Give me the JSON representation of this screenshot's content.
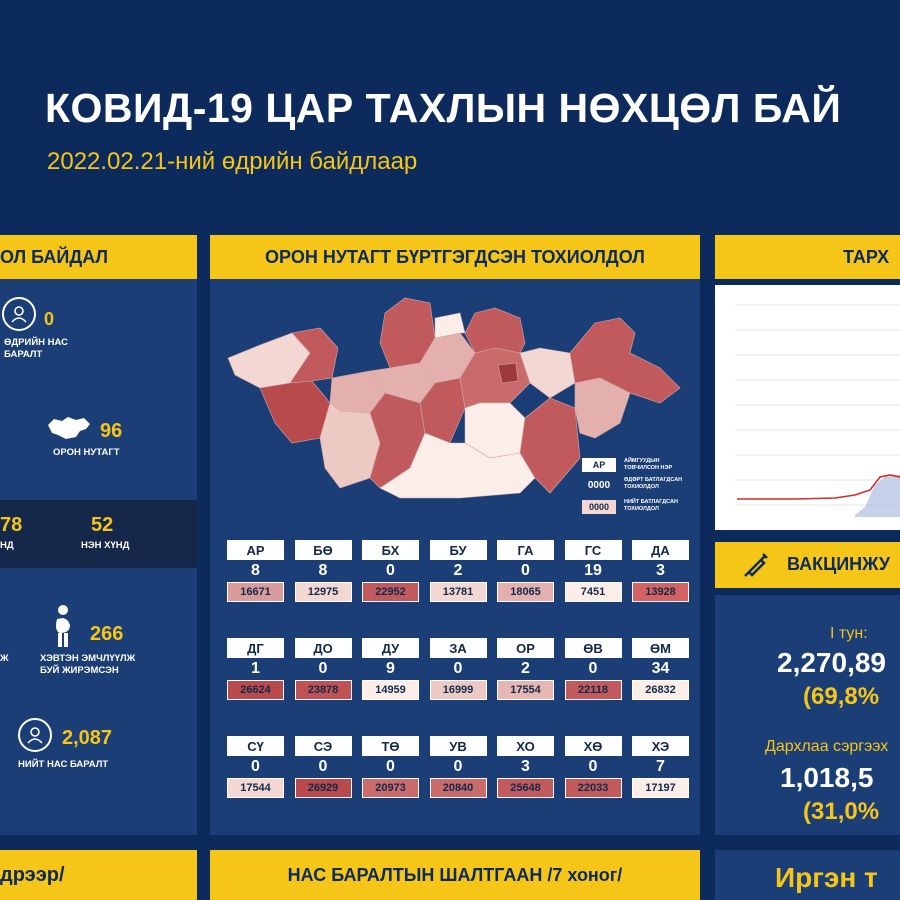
{
  "header": {
    "title": "КОВИД-19 ЦАР ТАХЛЫН НӨХЦӨЛ БАЙ",
    "date_line": "2022.02.21-ний өдрийн байдлаар"
  },
  "left_panel": {
    "title": "ОЛ БАЙДАЛ",
    "daily_deaths": {
      "value": "0",
      "label_line1": "ӨДРИЙН НАС",
      "label_line2": "БАРАЛТ"
    },
    "local": {
      "value": "96",
      "label": "ОРОН НУТАГТ"
    },
    "hosp": {
      "value_a": "78",
      "label_a": "НД",
      "value_b": "52",
      "label_b": "НЭН ХҮНД"
    },
    "pregnant": {
      "value": "266",
      "label_a": "Ж",
      "label_line1": "ХЭВТЭН ЭМЧЛҮҮЛЖ",
      "label_line2": "БУЙ ЖИРЭМСЭН"
    },
    "total_deaths": {
      "value": "2,087",
      "label": "НИЙТ НАС БАРАЛТ"
    },
    "bottom_title": "дрээр/"
  },
  "map_panel": {
    "title": "ОРОН НУТАГТ БҮРТГЭГДСЭН ТОХИОЛДОЛ",
    "legend": {
      "code_sample": "АР",
      "code_desc_1": "АЙМГУУДЫН",
      "code_desc_2": "ТОВЧИЛСОН НЭР",
      "daily_sample": "0000",
      "daily_desc_1": "ӨДӨРТ БАТЛАГДСАН",
      "daily_desc_2": "ТОХИОЛДОЛ",
      "total_sample": "0000",
      "total_desc_1": "НИЙТ БАТЛАГДСАН",
      "total_desc_2": "ТОХИОЛДОЛ"
    },
    "provinces": [
      {
        "code": "АР",
        "daily": "8",
        "total": "16671",
        "color": "#d99b9b"
      },
      {
        "code": "БӨ",
        "daily": "8",
        "total": "12975",
        "color": "#f3d7d2"
      },
      {
        "code": "БХ",
        "daily": "0",
        "total": "22952",
        "color": "#c05a5c"
      },
      {
        "code": "БУ",
        "daily": "2",
        "total": "13781",
        "color": "#f3d7d2"
      },
      {
        "code": "ГА",
        "daily": "0",
        "total": "18065",
        "color": "#e3b0ad"
      },
      {
        "code": "ГС",
        "daily": "19",
        "total": "7451",
        "color": "#fbeee8"
      },
      {
        "code": "ДА",
        "daily": "3",
        "total": "13928",
        "color": "#d46262"
      },
      {
        "code": "ДГ",
        "daily": "1",
        "total": "26624",
        "color": "#b94a4c"
      },
      {
        "code": "ДО",
        "daily": "0",
        "total": "23878",
        "color": "#be5254"
      },
      {
        "code": "ДУ",
        "daily": "9",
        "total": "14959",
        "color": "#fbeee8"
      },
      {
        "code": "ЗА",
        "daily": "0",
        "total": "16999",
        "color": "#edc9c4"
      },
      {
        "code": "ОР",
        "daily": "2",
        "total": "17554",
        "color": "#e5b6b2"
      },
      {
        "code": "ӨВ",
        "daily": "0",
        "total": "22118",
        "color": "#c05a5c"
      },
      {
        "code": "ӨМ",
        "daily": "34",
        "total": "26832",
        "color": "#fbeee8"
      },
      {
        "code": "СҮ",
        "daily": "0",
        "total": "17544",
        "color": "#f3d7d2"
      },
      {
        "code": "СЭ",
        "daily": "0",
        "total": "26929",
        "color": "#b94a4c"
      },
      {
        "code": "ТӨ",
        "daily": "0",
        "total": "20973",
        "color": "#c96a6b"
      },
      {
        "code": "УВ",
        "daily": "0",
        "total": "20840",
        "color": "#c96a6b"
      },
      {
        "code": "ХО",
        "daily": "3",
        "total": "25648",
        "color": "#c05a5c"
      },
      {
        "code": "ХӨ",
        "daily": "0",
        "total": "22033",
        "color": "#c05a5c"
      },
      {
        "code": "ХЭ",
        "daily": "7",
        "total": "17197",
        "color": "#fbeee8"
      }
    ]
  },
  "right_panel": {
    "trend_title": "ТАРХ",
    "vaccine_title": "ВАКЦИНЖУ",
    "dose1_label": "I тун:",
    "dose1_value": "2,270,89",
    "dose1_pct": "(69,8%",
    "booster_label": "Дархлаа сэргээх",
    "booster_value": "1,018,5",
    "booster_pct": "(31,0%",
    "bottom_title": "Иргэн т"
  },
  "bottom_center": {
    "title": "НАС БАРАЛТЫН ШАЛТГААН /7 хоног/"
  },
  "colors": {
    "background": "#0d2a5c",
    "panel": "#1b3e76",
    "accent": "#f5c518"
  },
  "icons": [
    "person-icon",
    "mongolia-map-icon",
    "pregnant-woman-icon",
    "deceased-person-icon",
    "syringe-icon"
  ]
}
